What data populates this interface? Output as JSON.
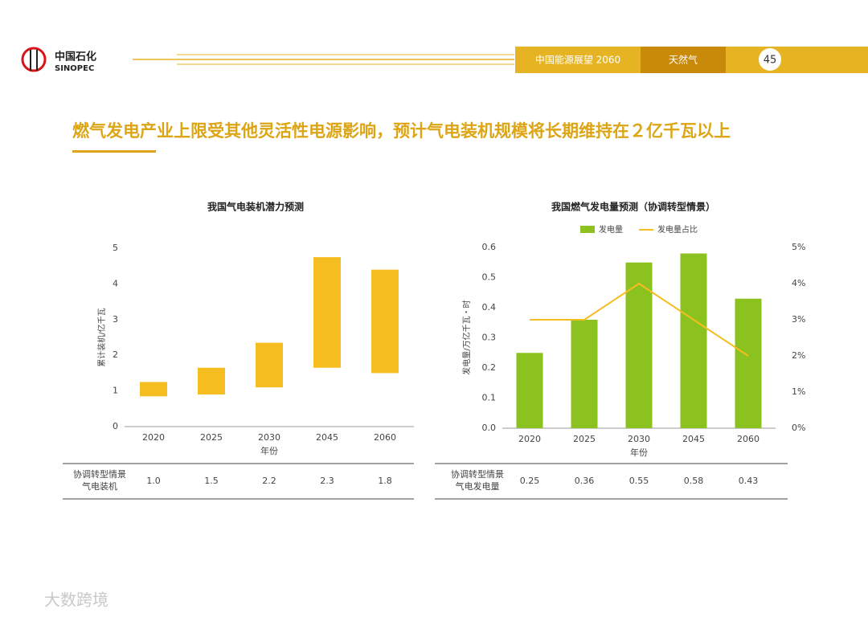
{
  "header": {
    "logo_cn": "中国石化",
    "logo_en": "SINOPEC",
    "report": "中国能源展望 2060",
    "section": "天然气",
    "page": "45"
  },
  "headline": "燃气发电产业上限受其他灵活性电源影响，预计气电装机规模将长期维持在２亿千瓦以上",
  "chart_data": [
    {
      "type": "range_bar",
      "title": "我国气电装机潜力预测",
      "y_label": "累计装机/亿千瓦",
      "x_label": "年份",
      "categories": [
        "2020",
        "2025",
        "2030",
        "2045",
        "2060"
      ],
      "low": [
        0.85,
        0.9,
        1.1,
        1.65,
        1.5
      ],
      "high": [
        1.25,
        1.65,
        2.35,
        4.75,
        4.4
      ],
      "color": "#f5bd1f",
      "ylim": [
        0,
        5
      ],
      "yticks": [
        0,
        1,
        2,
        3,
        4,
        5
      ],
      "table": {
        "label": [
          "协调转型情景",
          "气电装机"
        ],
        "values": [
          "1.0",
          "1.5",
          "2.2",
          "2.3",
          "1.8"
        ]
      }
    },
    {
      "type": "bar_line",
      "title": "我国燃气发电量预测（协调转型情景）",
      "y_label": "发电量/万亿千瓦・时",
      "x_label": "年份",
      "categories": [
        "2020",
        "2025",
        "2030",
        "2045",
        "2060"
      ],
      "series": [
        {
          "name": "发电量",
          "color": "#8cc21f",
          "type": "bar",
          "values": [
            0.25,
            0.36,
            0.55,
            0.58,
            0.43
          ]
        },
        {
          "name": "发电量占比",
          "color": "#f5bd1f",
          "type": "line",
          "axis": "y2",
          "values": [
            3,
            3,
            4,
            3,
            2
          ]
        }
      ],
      "ylim": [
        0,
        0.6
      ],
      "yticks": [
        {
          "value": 0,
          "label": "0.0"
        },
        0.1,
        0.2,
        0.3,
        0.4,
        0.5,
        0.6
      ],
      "y2lim": [
        0,
        5
      ],
      "y2ticks": [
        {
          "value": 0,
          "label": "0%"
        },
        {
          "value": 1,
          "label": "1%"
        },
        {
          "value": 2,
          "label": "2%"
        },
        {
          "value": 3,
          "label": "3%"
        },
        {
          "value": 4,
          "label": "4%"
        },
        {
          "value": 5,
          "label": "5%"
        }
      ],
      "table": {
        "label": [
          "协调转型情景",
          "气电发电量"
        ],
        "values": [
          "0.25",
          "0.36",
          "0.55",
          "0.58",
          "0.43"
        ]
      }
    }
  ],
  "watermark": "大数跨境"
}
